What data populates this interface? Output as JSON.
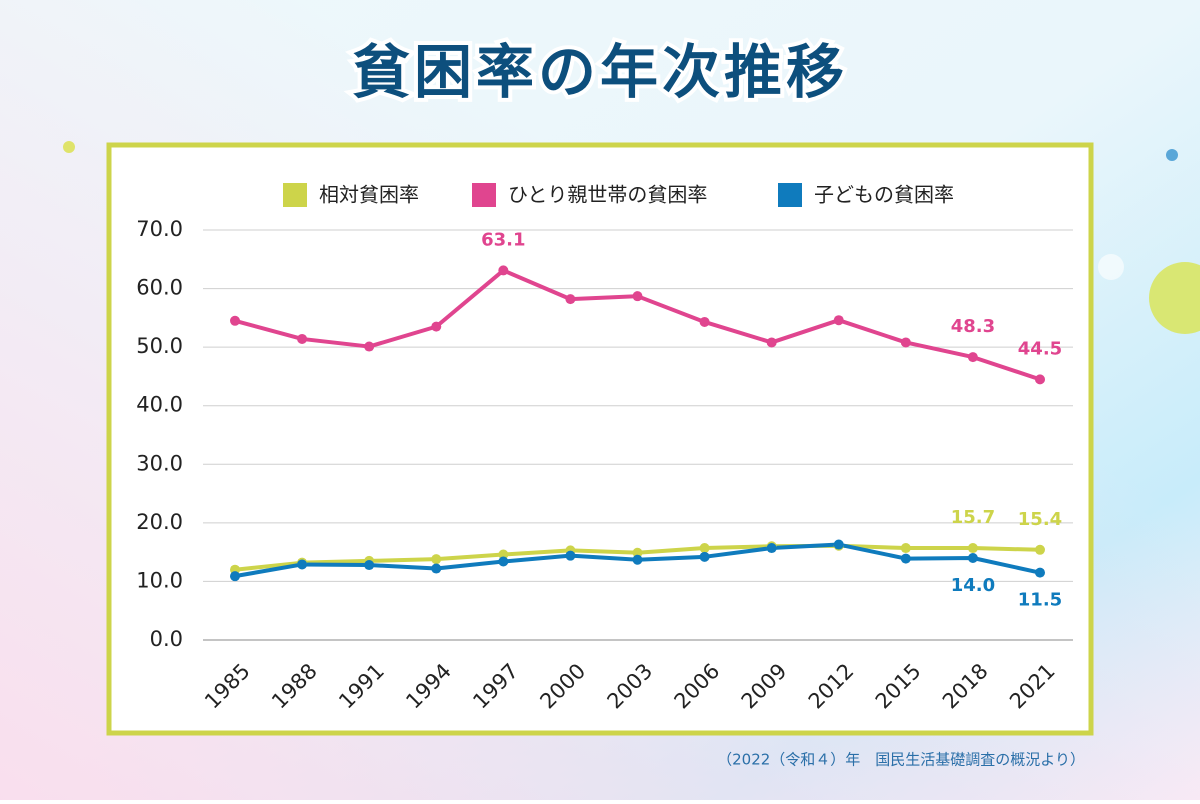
{
  "chart_data": {
    "type": "line",
    "title": "貧困率の年次推移",
    "source": "（2022（令和４）年　国民生活基礎調査の概況より）",
    "categories": [
      "1985",
      "1988",
      "1991",
      "1994",
      "1997",
      "2000",
      "2003",
      "2006",
      "2009",
      "2012",
      "2015",
      "2018",
      "2021"
    ],
    "series": [
      {
        "name": "相対貧困率",
        "color": "#cdd44a",
        "values": [
          12.0,
          13.2,
          13.5,
          13.8,
          14.6,
          15.3,
          14.9,
          15.7,
          16.0,
          16.1,
          15.7,
          15.7,
          15.4
        ],
        "value_labels": [
          null,
          null,
          null,
          null,
          null,
          null,
          null,
          null,
          null,
          null,
          null,
          "15.7",
          "15.4"
        ]
      },
      {
        "name": "ひとり親世帯の貧困率",
        "color": "#e0458f",
        "values": [
          54.5,
          51.4,
          50.1,
          53.5,
          63.1,
          58.2,
          58.7,
          54.3,
          50.8,
          54.6,
          50.8,
          48.3,
          44.5
        ],
        "value_labels": [
          null,
          null,
          null,
          null,
          "63.1",
          null,
          null,
          null,
          null,
          null,
          null,
          "48.3",
          "44.5"
        ]
      },
      {
        "name": "子どもの貧困率",
        "color": "#0f7bbd",
        "values": [
          10.9,
          12.9,
          12.8,
          12.2,
          13.4,
          14.4,
          13.7,
          14.2,
          15.7,
          16.3,
          13.9,
          14.0,
          11.5
        ],
        "value_labels": [
          null,
          null,
          null,
          null,
          null,
          null,
          null,
          null,
          null,
          null,
          null,
          "14.0",
          "11.5"
        ]
      }
    ],
    "ylim": [
      0,
      70
    ],
    "yticks": [
      {
        "value": 0,
        "label": "0.0"
      },
      {
        "value": 10,
        "label": "10.0"
      },
      {
        "value": 20,
        "label": "20.0"
      },
      {
        "value": 30,
        "label": "30.0"
      },
      {
        "value": 40,
        "label": "40.0"
      },
      {
        "value": 50,
        "label": "50.0"
      },
      {
        "value": 60,
        "label": "60.0"
      },
      {
        "value": 70,
        "label": "70.0"
      }
    ],
    "grid": true
  }
}
